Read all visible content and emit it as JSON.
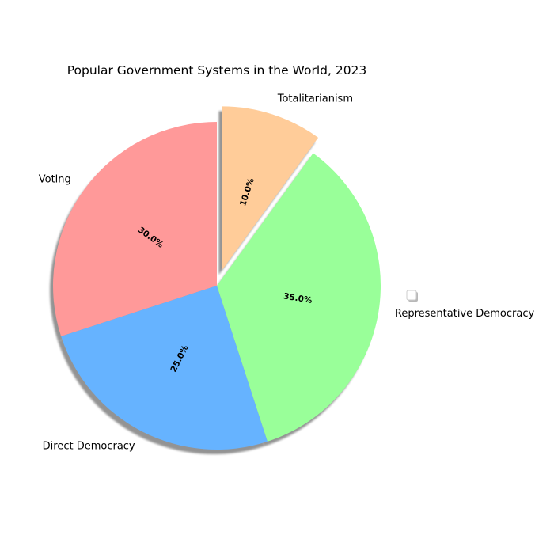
{
  "chart_data": {
    "type": "pie",
    "title": "Popular Government Systems in the World, 2023",
    "categories": [
      "Voting",
      "Direct Democracy",
      "Representative Democracy",
      "Totalitarianism"
    ],
    "values": [
      30.0,
      25.0,
      35.0,
      10.0
    ],
    "percent_labels": [
      "30.0%",
      "25.0%",
      "35.0%",
      "10.0%"
    ],
    "colors": [
      "#ff9999",
      "#66b3ff",
      "#99ff99",
      "#ffcc99"
    ],
    "explode": [
      0,
      0,
      0,
      0.1
    ],
    "start_angle": 90,
    "direction": "counterclockwise",
    "shadow": true,
    "legend_placement": "right"
  }
}
